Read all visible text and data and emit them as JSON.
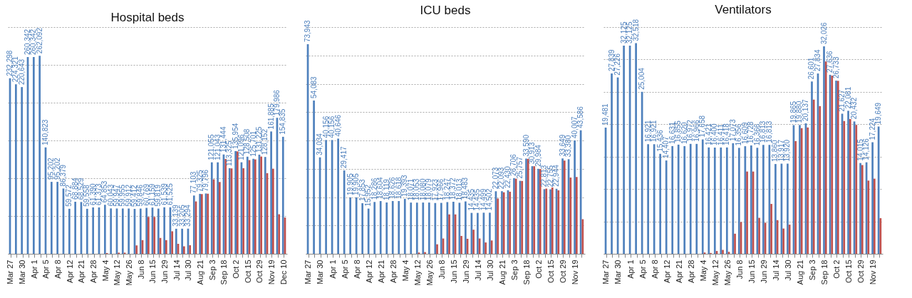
{
  "chart_data": [
    {
      "type": "bar",
      "title": "Hospital beds",
      "categories": [
        "Mar 27",
        null,
        "Mar 30",
        null,
        "Apr 1",
        null,
        "Apr 5",
        null,
        "Apr 8",
        null,
        "Apr 12",
        null,
        "Apr 21",
        null,
        "Apr 28",
        null,
        "May 4",
        null,
        "May 12",
        null,
        "May 26",
        null,
        "Jun 8",
        null,
        "Jun 15",
        null,
        "Jun 29",
        null,
        "Jul 14",
        null,
        "Jul 30",
        null,
        "Aug 21",
        null,
        "Sep 3",
        null,
        "Sep 18",
        null,
        "Oct 2",
        null,
        "Oct 15",
        null,
        "Oct 29",
        null,
        "Nov 19",
        null,
        "Dec 10"
      ],
      "series": [
        {
          "color": "#4f81bd",
          "values": [
            232298,
            224321,
            220643,
            260342,
            260342,
            262092,
            140823,
            95202,
            95202,
            86379,
            59572,
            68884,
            68529,
            59558,
            61390,
            61373,
            64853,
            60043,
            59947,
            59955,
            59912,
            59412,
            59846,
            60769,
            61159,
            59819,
            61539,
            61525,
            33139,
            33205,
            33294,
            77103,
            79325,
            79796,
            121055,
            121043,
            131444,
            113325,
            135954,
            121096,
            128508,
            125701,
            131225,
            128152,
            161885,
            179986,
            154835
          ],
          "value_labels": [
            "232,298",
            "224,321",
            "220,643",
            "260,342",
            "260,342",
            "262,092",
            "140,823",
            "95,202",
            "95,202",
            "86,379",
            "59,572",
            "68,884",
            "68,529",
            "59,558",
            "61,390",
            "61,373",
            "64,853",
            "60,043",
            "59,947",
            "59,955",
            "59,912",
            "59,412",
            "59,846",
            "60,769",
            "61,159",
            "59,819",
            "61,539",
            "61,525",
            "33,139",
            "33,205",
            "33,294",
            "77,103",
            "79,325",
            "79,796",
            "121,055",
            "121,043",
            "131,444",
            "113,325",
            "135,954",
            "121,096",
            "128,508",
            "125,701",
            "131,225",
            "128,152",
            "161,885",
            "179,986",
            "154,835"
          ]
        },
        {
          "color": "#c0504d",
          "values": [
            null,
            null,
            null,
            null,
            null,
            null,
            null,
            null,
            null,
            null,
            null,
            null,
            null,
            null,
            null,
            null,
            1000,
            null,
            1500,
            1500,
            null,
            11100,
            18100,
            48800,
            48800,
            21000,
            18100,
            29800,
            13200,
            9900,
            11400,
            69300,
            79000,
            79500,
            98500,
            95000,
            125400,
            113000,
            135500,
            113200,
            124000,
            124900,
            128700,
            106700,
            112600,
            52300,
            48000
          ]
        }
      ],
      "ylim": [
        0,
        300000
      ],
      "yticks": [
        {
          "value": 0,
          "label": null
        },
        {
          "value": 50000,
          "label": null
        },
        {
          "value": 100000,
          "label": null
        },
        {
          "value": 150000,
          "label": null
        },
        {
          "value": 200000,
          "label": null
        },
        {
          "value": 250000,
          "label": null
        },
        {
          "value": 300000,
          "label": null
        }
      ],
      "grid": "y",
      "legend": false,
      "tick_labels": "x"
    },
    {
      "type": "bar",
      "title": "ICU beds",
      "categories": [
        "Mar 27",
        null,
        "Mar 30",
        null,
        "Apr 1",
        null,
        "Apr 5",
        null,
        "Apr 8",
        null,
        "Apr 12",
        null,
        "Apr 21",
        null,
        "Apr 28",
        null,
        "May 4",
        null,
        "May 12",
        null,
        "May 26",
        null,
        "Jun 8",
        null,
        "Jun 15",
        null,
        "Jun 29",
        null,
        "Jul 14",
        null,
        "Jul 30",
        null,
        "Aug 21",
        null,
        "Sep 3",
        null,
        "Sep 18",
        null,
        "Oct 2",
        null,
        "Oct 15",
        null,
        "Oct 29",
        null,
        "Nov 19",
        null
      ],
      "series": [
        {
          "color": "#4f81bd",
          "values": [
            73943,
            54083,
            34034,
            40156,
            40156,
            40646,
            29417,
            19905,
            19905,
            17853,
            15952,
            18286,
            18604,
            18119,
            18626,
            18618,
            19393,
            18071,
            18053,
            18080,
            18079,
            17923,
            17966,
            18247,
            18372,
            18013,
            18483,
            14435,
            14435,
            14499,
            14502,
            22073,
            22093,
            22430,
            26706,
            25757,
            33590,
            30913,
            29984,
            22813,
            22755,
            22944,
            33649,
            33380,
            40007,
            43586
          ],
          "value_labels": [
            "73,943",
            "54,083",
            "34,034",
            "40,156",
            "40,156",
            "40,646",
            "29,417",
            "19,905",
            "19,905",
            "17,853",
            "15,952",
            "18,286",
            "18,604",
            "18,119",
            "18,626",
            "18,618",
            "19,393",
            "18,071",
            "18,053",
            "18,080",
            "18,079",
            "17,923",
            "17,966",
            "18,247",
            "18,372",
            "18,013",
            "18,483",
            "14,435",
            "14,435",
            "14,499",
            "14,502",
            "22,073",
            "22,093",
            "22,430",
            "26,706",
            "25,757",
            "33,590",
            "30,913",
            "29,984",
            "22,813",
            "22,755",
            "22,944",
            "33,649",
            "33,380",
            "40,007",
            "43,586"
          ]
        },
        {
          "color": "#c0504d",
          "values": [
            null,
            null,
            null,
            null,
            null,
            null,
            null,
            null,
            null,
            null,
            null,
            null,
            null,
            null,
            null,
            null,
            null,
            null,
            450,
            600,
            null,
            3350,
            5400,
            13900,
            13900,
            6300,
            5300,
            8500,
            5400,
            4000,
            4700,
            19500,
            21700,
            21900,
            26500,
            25700,
            33500,
            30900,
            29900,
            23000,
            23400,
            22400,
            32900,
            26900,
            27100,
            12200
          ]
        }
      ],
      "grid": "y",
      "legend": false,
      "tick_labels": "x"
    },
    {
      "type": "bar",
      "title": "Ventilators",
      "categories": [
        "Mar 27",
        null,
        "Mar 30",
        null,
        "Apr 1",
        null,
        "Apr 5",
        null,
        "Apr 8",
        null,
        "Apr 12",
        null,
        "Apr 21",
        null,
        "Apr 28",
        null,
        "May 4",
        null,
        "May 12",
        null,
        "May 26",
        null,
        "Jun 8",
        null,
        "Jun 15",
        null,
        "Jun 29",
        null,
        "Jul 14",
        null,
        "Jul 30",
        null,
        "Aug 21",
        null,
        "Sep 3",
        null,
        "Sep 18",
        null,
        "Oct 2",
        null,
        "Oct 15",
        null,
        "Oct 29",
        null,
        "Nov 19",
        null
      ],
      "series": [
        {
          "color": "#4f81bd",
          "values": [
            19481,
            27839,
            27226,
            32125,
            32125,
            32518,
            25004,
            16921,
            16921,
            15436,
            14407,
            16631,
            16855,
            16620,
            16972,
            16966,
            17658,
            16421,
            16400,
            16411,
            16418,
            17073,
            16356,
            16609,
            16728,
            16366,
            16813,
            16813,
            13860,
            13917,
            13920,
            19865,
            19880,
            20137,
            26601,
            27834,
            32026,
            27636,
            26733,
            21627,
            22081,
            20432,
            14015,
            14126,
            17224,
            19649
          ],
          "value_labels": [
            "19,481",
            "27,839",
            "27,226",
            "32,125",
            "32,125",
            "32,518",
            "25,004",
            "16,921",
            "16,921",
            "15,436",
            "14,407",
            "16,631",
            "16,855",
            "16,620",
            "16,972",
            "16,966",
            "17,658",
            "16,421",
            "16,400",
            "16,411",
            "16,418",
            "17,073",
            "16,356",
            "16,609",
            "16,728",
            "16,366",
            "16,813",
            "16,813",
            "13,860",
            "13,917",
            "13,920",
            "19,865",
            "19,880",
            "20,137",
            "26,601",
            "27,834",
            "32,026",
            "27,636",
            "26,733",
            "21,627",
            "22,081",
            "20,432",
            "14,015",
            "14,126",
            "17,224",
            "19,649"
          ]
        },
        {
          "color": "#c0504d",
          "values": [
            null,
            null,
            null,
            null,
            null,
            null,
            null,
            null,
            null,
            null,
            null,
            null,
            null,
            null,
            null,
            null,
            200,
            130,
            430,
            600,
            300,
            3100,
            4900,
            12700,
            12700,
            5550,
            4800,
            7700,
            5200,
            3900,
            4500,
            17400,
            19400,
            19500,
            23800,
            22800,
            29700,
            27500,
            26700,
            20500,
            20800,
            19900,
            13700,
            11300,
            11600,
            5500
          ]
        }
      ],
      "grid": "y",
      "legend": false,
      "tick_labels": "x"
    }
  ]
}
